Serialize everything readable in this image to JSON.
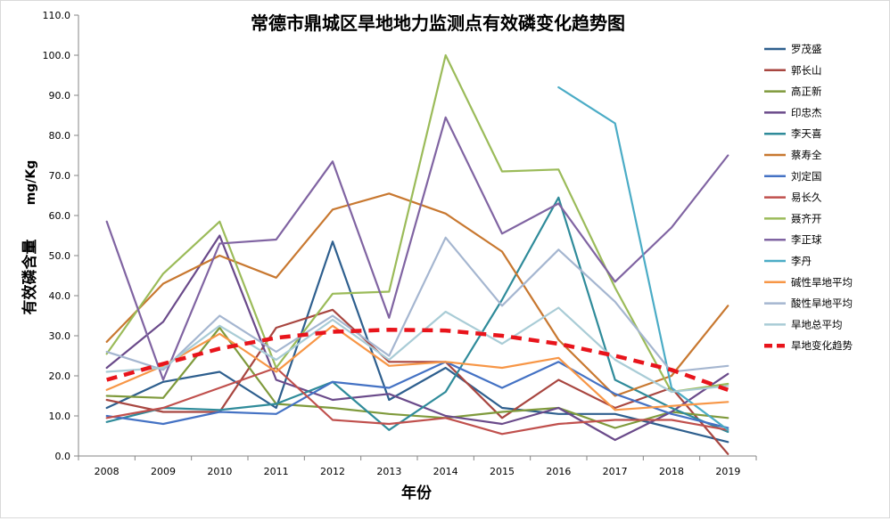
{
  "chart_data": {
    "type": "line",
    "title": "常德市鼎城区旱地地力监测点有效磷变化趋势图",
    "xlabel": "年份",
    "ylabel": "有效磷含量",
    "ylabel_unit": "mg/Kg",
    "ylim": [
      0,
      110
    ],
    "ytick_step": 10,
    "categories": [
      "2008",
      "2009",
      "2010",
      "2011",
      "2012",
      "2013",
      "2014",
      "2015",
      "2016",
      "2017",
      "2018",
      "2019"
    ],
    "legend_position": "right",
    "series": [
      {
        "name": "罗茂盛",
        "color": "#2e5f8e",
        "width": 2.2,
        "values": [
          12.0,
          18.5,
          21.0,
          12.0,
          53.5,
          14.0,
          22.0,
          12.0,
          10.5,
          10.5,
          7.0,
          3.5
        ]
      },
      {
        "name": "郭长山",
        "color": "#a84640",
        "width": 2.2,
        "values": [
          14.0,
          11.0,
          11.0,
          32.0,
          36.5,
          23.5,
          23.5,
          9.5,
          19.0,
          12.0,
          17.0,
          0.5
        ]
      },
      {
        "name": "高正新",
        "color": "#7f9a3c",
        "width": 2.2,
        "values": [
          15.0,
          14.5,
          32.0,
          13.0,
          12.0,
          10.5,
          9.5,
          11.0,
          12.0,
          7.0,
          11.0,
          9.5
        ]
      },
      {
        "name": "印忠杰",
        "color": "#6a4a8a",
        "width": 2.2,
        "values": [
          22.0,
          33.5,
          55.0,
          19.0,
          14.0,
          15.5,
          10.0,
          8.0,
          12.0,
          4.0,
          11.0,
          20.5
        ]
      },
      {
        "name": "李天喜",
        "color": "#2f8b9a",
        "width": 2.2,
        "values": [
          8.5,
          12.0,
          11.5,
          13.0,
          18.5,
          6.5,
          16.0,
          39.0,
          64.5,
          19.0,
          12.0,
          6.0
        ]
      },
      {
        "name": "蔡寿全",
        "color": "#c87830",
        "width": 2.2,
        "values": [
          28.5,
          43.0,
          50.0,
          44.5,
          61.5,
          65.5,
          60.5,
          51.0,
          29.0,
          15.0,
          20.0,
          37.5
        ]
      },
      {
        "name": "刘定国",
        "color": "#4472c4",
        "width": 2.2,
        "values": [
          10.0,
          8.0,
          11.0,
          10.5,
          18.5,
          17.0,
          23.5,
          17.0,
          23.5,
          15.5,
          10.5,
          7.0
        ]
      },
      {
        "name": "易长久",
        "color": "#c0504d",
        "width": 2.2,
        "values": [
          9.5,
          12.0,
          17.0,
          22.0,
          9.0,
          8.0,
          9.5,
          5.5,
          8.0,
          9.0,
          9.0,
          6.5
        ]
      },
      {
        "name": "聂齐开",
        "color": "#9bbb59",
        "width": 2.2,
        "values": [
          25.5,
          45.5,
          58.5,
          22.0,
          40.5,
          41.0,
          100.0,
          71.0,
          71.5,
          42.0,
          16.0,
          18.0
        ]
      },
      {
        "name": "李正球",
        "color": "#8064a2",
        "width": 2.2,
        "values": [
          58.5,
          19.0,
          53.0,
          54.0,
          73.5,
          34.5,
          84.5,
          55.5,
          63.0,
          43.5,
          57.0,
          75.0
        ]
      },
      {
        "name": "李丹",
        "color": "#4bacc6",
        "width": 2.2,
        "values": [
          null,
          null,
          null,
          null,
          null,
          null,
          null,
          null,
          92.0,
          83.0,
          17.0,
          6.5
        ]
      },
      {
        "name": "碱性旱地平均",
        "color": "#f79646",
        "width": 2.2,
        "values": [
          16.5,
          22.5,
          30.5,
          21.0,
          32.5,
          22.5,
          23.5,
          22.0,
          24.5,
          11.5,
          12.5,
          13.5
        ]
      },
      {
        "name": "酸性旱地平均",
        "color": "#a5b6d0",
        "width": 2.2,
        "values": [
          26.0,
          21.5,
          35.0,
          26.0,
          35.0,
          25.0,
          54.5,
          37.5,
          51.5,
          38.5,
          21.0,
          22.5
        ]
      },
      {
        "name": "旱地总平均",
        "color": "#a9ccd6",
        "width": 2.2,
        "values": [
          21.0,
          22.0,
          32.5,
          24.0,
          34.0,
          24.0,
          36.0,
          28.0,
          37.0,
          24.0,
          16.0,
          17.5
        ]
      },
      {
        "name": "旱地变化趋势",
        "color": "#e8141b",
        "width": 4.5,
        "dash": "12,8",
        "values": [
          19.0,
          23.0,
          26.8,
          29.5,
          31.0,
          31.5,
          31.3,
          30.0,
          28.0,
          25.0,
          21.5,
          16.5
        ]
      }
    ]
  }
}
